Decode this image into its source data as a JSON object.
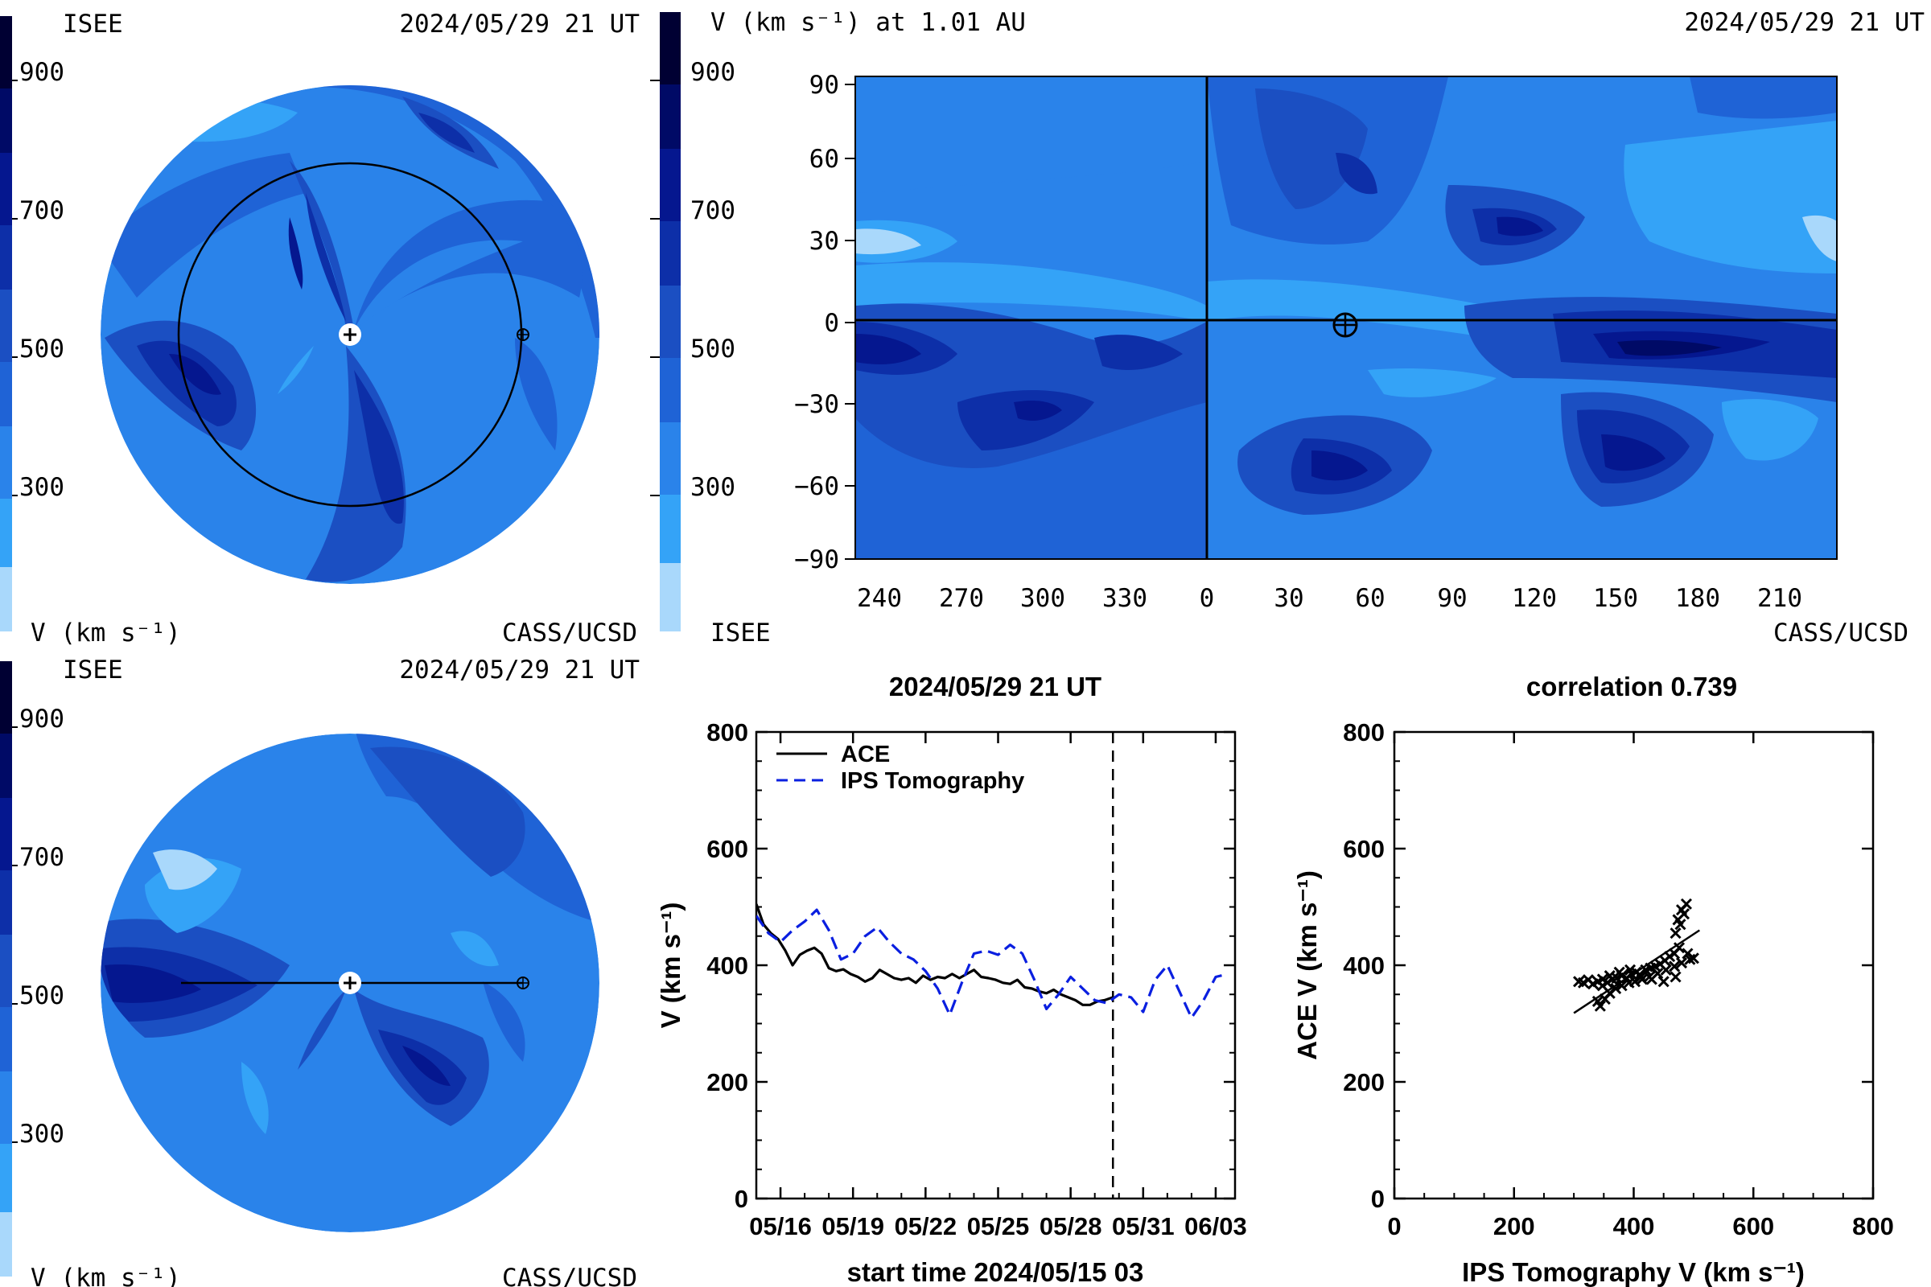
{
  "colors": {
    "v900": "#000033",
    "v800": "#000a66",
    "v700": "#05178f",
    "v600": "#0d2fa8",
    "v500": "#1b4fc2",
    "v400": "#1f63d6",
    "v300": "#2a83ea",
    "v200": "#34a3f7",
    "v100": "#a9d8fb"
  },
  "colorbar": {
    "ticks": [
      "900",
      "700",
      "500",
      "300"
    ],
    "units": "V (km s⁻¹)"
  },
  "panel_top_left": {
    "org": "ISEE",
    "date": "2024/05/29 21 UT",
    "credit": "CASS/UCSD",
    "units": "V (km s⁻¹)"
  },
  "panel_bottom_left": {
    "org": "ISEE",
    "date": "2024/05/29 21 UT",
    "credit": "CASS/UCSD",
    "units": "V (km s⁻¹)"
  },
  "panel_map": {
    "title": "V (km s⁻¹) at 1.01 AU",
    "date": "2024/05/29 21 UT",
    "org": "ISEE",
    "credit": "CASS/UCSD",
    "lat_ticks": [
      "90",
      "60",
      "30",
      "0",
      "−30",
      "−60",
      "−90"
    ],
    "lon_ticks": [
      "240",
      "270",
      "300",
      "330",
      "0",
      "30",
      "60",
      "90",
      "120",
      "150",
      "180",
      "210"
    ]
  },
  "chart_data": [
    {
      "type": "line",
      "title": "2024/05/29 21 UT",
      "xlabel": "start time 2024/05/15 03",
      "ylabel": "V (km s⁻¹)",
      "ylim": [
        0,
        800
      ],
      "yticks": [
        "0",
        "200",
        "400",
        "600",
        "800"
      ],
      "xticks": [
        "05/16",
        "05/19",
        "05/22",
        "05/25",
        "05/28",
        "05/31",
        "06/03"
      ],
      "x_units": "days since start",
      "xlim": [
        0,
        19.8
      ],
      "now_marker": 14.75,
      "legend_position": "top-left",
      "series": [
        {
          "name": "ACE",
          "color": "#000000",
          "style": "solid",
          "x": [
            0,
            0.3,
            0.6,
            0.9,
            1.2,
            1.5,
            1.8,
            2.1,
            2.4,
            2.7,
            3.0,
            3.3,
            3.6,
            3.9,
            4.2,
            4.5,
            4.8,
            5.1,
            5.4,
            5.7,
            6.0,
            6.3,
            6.6,
            6.9,
            7.2,
            7.5,
            7.8,
            8.1,
            8.4,
            8.7,
            9.0,
            9.3,
            9.6,
            9.9,
            10.2,
            10.5,
            10.8,
            11.1,
            11.4,
            11.7,
            12.0,
            12.3,
            12.6,
            12.9,
            13.2,
            13.5,
            13.8,
            14.1,
            14.4,
            14.75
          ],
          "values": [
            505,
            470,
            455,
            445,
            425,
            400,
            418,
            425,
            430,
            420,
            395,
            390,
            393,
            385,
            380,
            372,
            378,
            392,
            385,
            378,
            375,
            378,
            370,
            382,
            375,
            380,
            378,
            385,
            378,
            385,
            392,
            380,
            378,
            375,
            370,
            368,
            375,
            362,
            360,
            355,
            352,
            358,
            350,
            345,
            340,
            332,
            332,
            338,
            340,
            345
          ]
        },
        {
          "name": "IPS Tomography",
          "color": "#0a1fe0",
          "style": "dashed",
          "x": [
            0,
            0.5,
            1.0,
            1.5,
            2.0,
            2.5,
            3.0,
            3.5,
            4.0,
            4.5,
            5.0,
            5.5,
            6.0,
            6.5,
            7.0,
            7.5,
            8.0,
            8.5,
            9.0,
            9.5,
            10.0,
            10.5,
            11.0,
            11.5,
            12.0,
            12.5,
            13.0,
            13.5,
            14.0,
            14.5,
            15.0,
            15.5,
            16.0,
            16.5,
            17.0,
            17.5,
            18.0,
            18.5,
            19.0,
            19.5
          ],
          "values": [
            485,
            455,
            440,
            460,
            475,
            495,
            460,
            410,
            420,
            450,
            465,
            440,
            420,
            410,
            390,
            360,
            315,
            370,
            420,
            425,
            418,
            435,
            420,
            375,
            325,
            350,
            380,
            360,
            340,
            335,
            350,
            345,
            320,
            375,
            400,
            355,
            310,
            340,
            380,
            385
          ]
        }
      ]
    },
    {
      "type": "scatter",
      "title": "correlation 0.739",
      "xlabel": "IPS Tomography V (km s⁻¹)",
      "ylabel": "ACE V (km s⁻¹)",
      "xlim": [
        0,
        800
      ],
      "ylim": [
        0,
        800
      ],
      "xticks": [
        "0",
        "200",
        "400",
        "600",
        "800"
      ],
      "yticks": [
        "0",
        "200",
        "400",
        "600",
        "800"
      ],
      "points": [
        [
          308,
          372
        ],
        [
          316,
          370
        ],
        [
          324,
          375
        ],
        [
          332,
          368
        ],
        [
          340,
          372
        ],
        [
          348,
          365
        ],
        [
          356,
          370
        ],
        [
          364,
          376
        ],
        [
          372,
          378
        ],
        [
          380,
          382
        ],
        [
          388,
          378
        ],
        [
          396,
          385
        ],
        [
          404,
          388
        ],
        [
          412,
          380
        ],
        [
          420,
          392
        ],
        [
          428,
          395
        ],
        [
          436,
          398
        ],
        [
          444,
          402
        ],
        [
          452,
          408
        ],
        [
          460,
          415
        ],
        [
          468,
          420
        ],
        [
          476,
          430
        ],
        [
          470,
          455
        ],
        [
          478,
          470
        ],
        [
          484,
          488
        ],
        [
          488,
          505
        ],
        [
          480,
          495
        ],
        [
          474,
          478
        ],
        [
          340,
          338
        ],
        [
          344,
          330
        ],
        [
          352,
          342
        ],
        [
          360,
          352
        ],
        [
          370,
          360
        ],
        [
          380,
          365
        ],
        [
          392,
          370
        ],
        [
          402,
          372
        ],
        [
          414,
          376
        ],
        [
          426,
          380
        ],
        [
          440,
          386
        ],
        [
          454,
          392
        ],
        [
          468,
          398
        ],
        [
          480,
          404
        ],
        [
          494,
          410
        ],
        [
          500,
          412
        ],
        [
          490,
          420
        ],
        [
          470,
          380
        ],
        [
          450,
          372
        ],
        [
          430,
          376
        ],
        [
          410,
          384
        ],
        [
          394,
          392
        ],
        [
          376,
          388
        ],
        [
          360,
          382
        ],
        [
          348,
          376
        ]
      ],
      "fit_line": [
        [
          300,
          318
        ],
        [
          510,
          460
        ]
      ]
    }
  ]
}
